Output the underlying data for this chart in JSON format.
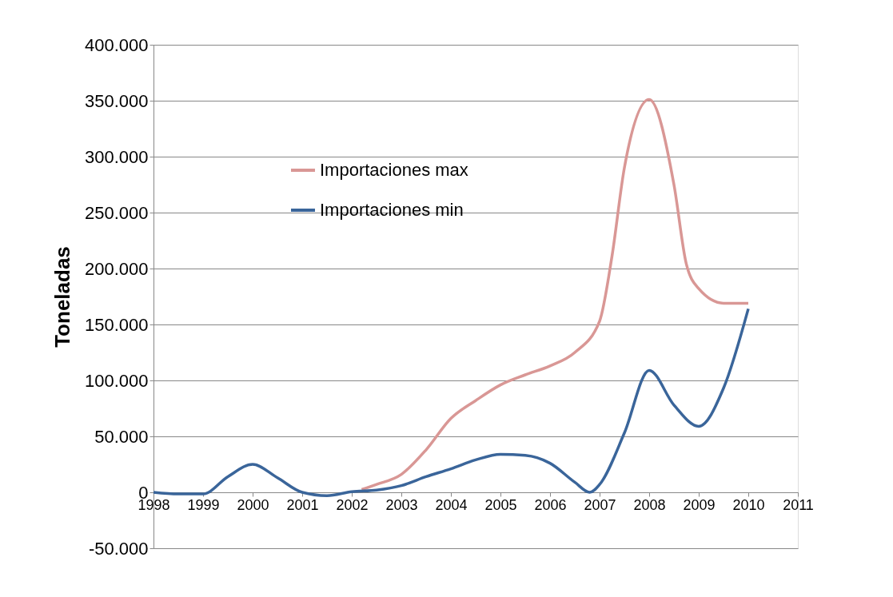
{
  "chart_data": {
    "type": "line",
    "ylabel": "Toneladas",
    "xlim": [
      1998,
      2011
    ],
    "xticks": [
      1998,
      1999,
      2000,
      2001,
      2002,
      2003,
      2004,
      2005,
      2006,
      2007,
      2008,
      2009,
      2010,
      2011
    ],
    "ylim": [
      -50000,
      400000
    ],
    "yticks": [
      {
        "value": -50000,
        "label": "-50.000"
      },
      0,
      {
        "value": 50000,
        "label": "50.000"
      },
      {
        "value": 100000,
        "label": "100.000"
      },
      {
        "value": 150000,
        "label": "150.000"
      },
      {
        "value": 200000,
        "label": "200.000"
      },
      {
        "value": 250000,
        "label": "250.000"
      },
      {
        "value": 300000,
        "label": "300.000"
      },
      {
        "value": 350000,
        "label": "350.000"
      },
      {
        "value": 400000,
        "label": "400.000"
      }
    ],
    "grid": "y",
    "legend": "top left",
    "marker": "none",
    "line_style": "solid",
    "series": [
      {
        "name": "Importaciones max",
        "color": "#d99795",
        "x": [
          2002.2,
          2002.5,
          2003,
          2003.5,
          2004,
          2004.5,
          2005,
          2005.5,
          2006,
          2006.5,
          2007,
          2007.25,
          2007.5,
          2008,
          2008.5,
          2008.75,
          2009,
          2009.5,
          2010
        ],
        "values": [
          2500,
          7000,
          16000,
          38000,
          66000,
          82000,
          96000,
          105000,
          113000,
          125000,
          153000,
          211000,
          290000,
          351000,
          275000,
          204000,
          182000,
          169000,
          169000
        ]
      },
      {
        "name": "Importaciones min",
        "color": "#3a659a",
        "x": [
          1998,
          1998.5,
          1999,
          1999.5,
          2000,
          2000.5,
          2001,
          2001.5,
          2002,
          2002.5,
          2003,
          2003.5,
          2004,
          2004.5,
          2005,
          2005.5,
          2006,
          2006.5,
          2006.8,
          2007,
          2007.5,
          2008,
          2008.5,
          2009,
          2009.5,
          2010
        ],
        "values": [
          0,
          -1500,
          -1500,
          14000,
          25000,
          13000,
          0,
          -3000,
          500,
          2000,
          6000,
          14000,
          21000,
          29000,
          34000,
          33000,
          26000,
          9000,
          0,
          7000,
          53000,
          109000,
          78000,
          59000,
          93000,
          164000
        ]
      }
    ]
  }
}
